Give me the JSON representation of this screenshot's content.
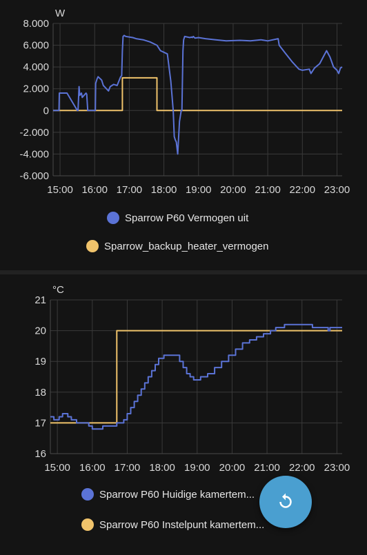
{
  "colors": {
    "series_blue": "#5b73d6",
    "series_yellow": "#f0c36b",
    "fab": "#4a9fd0"
  },
  "chart_data": [
    {
      "type": "line",
      "ylabel": "W",
      "ylim": [
        -6000,
        8000
      ],
      "yticks": [
        -6000,
        -4000,
        -2000,
        0,
        2000,
        4000,
        6000,
        8000
      ],
      "ytick_labels": [
        "-6.000",
        "-4.000",
        "-2.000",
        "0",
        "2.000",
        "4.000",
        "6.000",
        "8.000"
      ],
      "xlim": [
        14.8,
        23.15
      ],
      "xticks": [
        15,
        16,
        17,
        18,
        19,
        20,
        21,
        22,
        23
      ],
      "xtick_labels": [
        "15:00",
        "16:00",
        "17:00",
        "18:00",
        "19:00",
        "20:00",
        "21:00",
        "22:00",
        "23:00"
      ],
      "grid": true,
      "legend": "bottom",
      "series": [
        {
          "name": "Sparrow P60 Vermogen uit",
          "color": "#5b73d6",
          "x": [
            14.8,
            14.97,
            14.98,
            15.2,
            15.22,
            15.5,
            15.52,
            15.55,
            15.57,
            15.62,
            15.64,
            15.75,
            15.77,
            15.8,
            15.82,
            16.02,
            16.03,
            16.07,
            16.1,
            16.2,
            16.25,
            16.4,
            16.45,
            16.55,
            16.65,
            16.75,
            16.78,
            16.8,
            16.82,
            16.85,
            16.9,
            17.1,
            17.2,
            17.4,
            17.6,
            17.8,
            17.9,
            18.1,
            18.2,
            18.27,
            18.3,
            18.33,
            18.36,
            18.4,
            18.45,
            18.5,
            18.52,
            18.55,
            18.57,
            18.6,
            18.75,
            18.8,
            18.82,
            18.85,
            18.9,
            19.0,
            19.2,
            19.5,
            19.8,
            20.2,
            20.5,
            20.8,
            21.0,
            21.3,
            21.33,
            21.5,
            21.7,
            21.9,
            22.0,
            22.2,
            22.25,
            22.35,
            22.5,
            22.6,
            22.7,
            22.8,
            22.9,
            23.0,
            23.05,
            23.1,
            23.15
          ],
          "y": [
            0,
            0,
            1600,
            1600,
            1500,
            0,
            0,
            2200,
            1400,
            1600,
            1200,
            1600,
            1500,
            0,
            0,
            0,
            2500,
            2900,
            3100,
            2800,
            2300,
            1800,
            2200,
            2400,
            2300,
            3100,
            3200,
            5500,
            6800,
            6900,
            6800,
            6700,
            6600,
            6500,
            6300,
            6000,
            5500,
            5200,
            2700,
            0,
            -2400,
            -2700,
            -2900,
            -4000,
            -1000,
            0,
            0,
            5500,
            6500,
            6800,
            6700,
            6750,
            6700,
            6800,
            6650,
            6700,
            6600,
            6500,
            6400,
            6450,
            6400,
            6500,
            6400,
            6600,
            6000,
            5300,
            4500,
            3800,
            3700,
            3800,
            3400,
            3900,
            4300,
            4900,
            5500,
            4900,
            4000,
            3700,
            3400,
            3900,
            4000
          ]
        },
        {
          "name": "Sparrow_backup_heater_vermogen",
          "color": "#f0c36b",
          "x": [
            14.8,
            16.8,
            16.8,
            17.8,
            17.8,
            23.15
          ],
          "y": [
            0,
            0,
            3000,
            3000,
            0,
            0
          ]
        }
      ]
    },
    {
      "type": "line",
      "ylabel": "°C",
      "ylim": [
        16,
        21
      ],
      "yticks": [
        16,
        17,
        18,
        19,
        20,
        21
      ],
      "ytick_labels": [
        "16",
        "17",
        "18",
        "19",
        "20",
        "21"
      ],
      "xlim": [
        14.8,
        23.15
      ],
      "xticks": [
        15,
        16,
        17,
        18,
        19,
        20,
        21,
        22,
        23
      ],
      "xtick_labels": [
        "15:00",
        "16:00",
        "17:00",
        "18:00",
        "19:00",
        "20:00",
        "21:00",
        "22:00",
        "23:00"
      ],
      "grid": true,
      "legend": "bottom",
      "series": [
        {
          "name": "Sparrow P60 Huidige kamertem...",
          "color": "#5b73d6",
          "step": true,
          "x": [
            14.8,
            14.9,
            15.05,
            15.15,
            15.3,
            15.4,
            15.55,
            15.9,
            16.0,
            16.3,
            16.5,
            16.7,
            16.9,
            17.0,
            17.1,
            17.2,
            17.3,
            17.4,
            17.5,
            17.6,
            17.7,
            17.8,
            17.9,
            18.05,
            18.15,
            18.5,
            18.6,
            18.7,
            18.8,
            18.9,
            19.1,
            19.3,
            19.5,
            19.7,
            19.9,
            20.1,
            20.3,
            20.5,
            20.7,
            20.9,
            21.1,
            21.25,
            21.4,
            21.5,
            22.0,
            22.3,
            22.6,
            22.75,
            22.8,
            23.15
          ],
          "y": [
            17.2,
            17.1,
            17.2,
            17.3,
            17.2,
            17.1,
            17.0,
            16.9,
            16.8,
            16.9,
            16.9,
            17.0,
            17.1,
            17.3,
            17.5,
            17.7,
            17.9,
            18.1,
            18.3,
            18.5,
            18.7,
            18.9,
            19.1,
            19.2,
            19.2,
            19.0,
            18.8,
            18.6,
            18.5,
            18.4,
            18.5,
            18.6,
            18.8,
            19.0,
            19.2,
            19.4,
            19.6,
            19.7,
            19.8,
            19.9,
            20.0,
            20.1,
            20.1,
            20.2,
            20.2,
            20.1,
            20.1,
            20.0,
            20.1,
            20.1
          ]
        },
        {
          "name": "Sparrow P60 Instelpunt kamertem...",
          "color": "#f0c36b",
          "step": true,
          "x": [
            14.8,
            16.7,
            23.15
          ],
          "y": [
            17.0,
            20.0,
            20.0
          ]
        }
      ]
    }
  ]
}
